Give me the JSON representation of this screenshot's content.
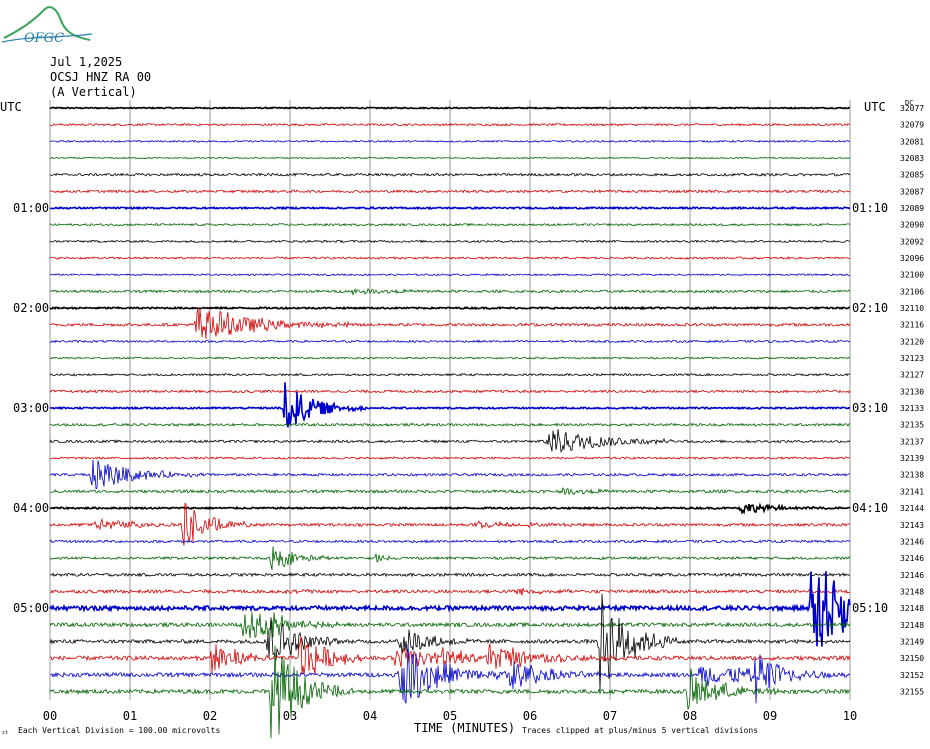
{
  "logo": {
    "text": "OFGC",
    "color": "#2a7fa8",
    "accent": "#3aa35a"
  },
  "header": {
    "date": "Jul 1,2025",
    "station": "OCSJ HNZ RA 00",
    "component": "(A Vertical)"
  },
  "left_axis_title": "UTC",
  "right_axis_title": "UTC",
  "right_scale_header": "DC",
  "footer": {
    "corner_mark": "st",
    "division_note": "Each Vertical Division =  100.00 microvolts",
    "xlabel": "TIME (MINUTES)",
    "clip_note": "Traces clipped at plus/minus 5 vertical divisions"
  },
  "colors": {
    "black": "#000000",
    "red": "#d40000",
    "blue": "#0000cc",
    "green": "#006400",
    "grid": "#808080"
  },
  "chart_data": {
    "type": "line",
    "title": "",
    "xlabel": "TIME (MINUTES)",
    "ylabel": "",
    "xlim": [
      0,
      10
    ],
    "x_ticks": [
      "00",
      "01",
      "02",
      "03",
      "04",
      "05",
      "06",
      "07",
      "08",
      "09",
      "10"
    ],
    "color_cycle": [
      "black",
      "red",
      "blue",
      "green"
    ],
    "left_time_labels": [
      {
        "row": 6,
        "label": "01:00"
      },
      {
        "row": 12,
        "label": "02:00"
      },
      {
        "row": 18,
        "label": "03:00"
      },
      {
        "row": 24,
        "label": "04:00"
      },
      {
        "row": 30,
        "label": "05:00"
      }
    ],
    "right_time_labels": [
      {
        "row": 6,
        "label": "01:10"
      },
      {
        "row": 12,
        "label": "02:10"
      },
      {
        "row": 18,
        "label": "03:10"
      },
      {
        "row": 24,
        "label": "04:10"
      },
      {
        "row": 30,
        "label": "05:10"
      }
    ],
    "dc_offsets": [
      "32077",
      "32079",
      "32081",
      "32083",
      "32085",
      "32087",
      "32089",
      "32090",
      "32092",
      "32096",
      "32100",
      "32106",
      "32110",
      "32116",
      "32120",
      "32123",
      "32127",
      "32130",
      "32133",
      "32135",
      "32137",
      "32139",
      "32138",
      "32141",
      "32144",
      "32143",
      "32146",
      "32146",
      "32146",
      "32148",
      "32148",
      "32148",
      "32149",
      "32150",
      "32152",
      "32155"
    ],
    "bold_rows": [
      0,
      6,
      12,
      18,
      24,
      30
    ],
    "traces": [
      {
        "row": 0,
        "noise": 0.3,
        "events": []
      },
      {
        "row": 1,
        "noise": 0.5,
        "events": []
      },
      {
        "row": 2,
        "noise": 0.4,
        "events": []
      },
      {
        "row": 3,
        "noise": 0.3,
        "events": []
      },
      {
        "row": 4,
        "noise": 0.6,
        "events": []
      },
      {
        "row": 5,
        "noise": 0.6,
        "events": []
      },
      {
        "row": 6,
        "noise": 0.4,
        "events": []
      },
      {
        "row": 7,
        "noise": 0.5,
        "events": []
      },
      {
        "row": 8,
        "noise": 0.5,
        "events": []
      },
      {
        "row": 9,
        "noise": 0.5,
        "events": []
      },
      {
        "row": 10,
        "noise": 0.4,
        "events": []
      },
      {
        "row": 11,
        "noise": 0.6,
        "events": [
          {
            "t": 3.75,
            "amp": 1.2,
            "dur": 0.6
          }
        ]
      },
      {
        "row": 12,
        "noise": 0.4,
        "events": []
      },
      {
        "row": 13,
        "noise": 0.7,
        "events": [
          {
            "t": 1.8,
            "amp": 10,
            "dur": 0.7
          }
        ]
      },
      {
        "row": 14,
        "noise": 0.5,
        "events": []
      },
      {
        "row": 15,
        "noise": 0.4,
        "events": []
      },
      {
        "row": 16,
        "noise": 0.5,
        "events": []
      },
      {
        "row": 17,
        "noise": 0.6,
        "events": []
      },
      {
        "row": 18,
        "noise": 0.4,
        "events": [
          {
            "t": 2.9,
            "amp": 14,
            "dur": 0.35
          }
        ]
      },
      {
        "row": 19,
        "noise": 0.6,
        "events": []
      },
      {
        "row": 20,
        "noise": 0.6,
        "events": [
          {
            "t": 6.2,
            "amp": 8,
            "dur": 0.6
          }
        ]
      },
      {
        "row": 21,
        "noise": 0.5,
        "events": []
      },
      {
        "row": 22,
        "noise": 0.6,
        "events": [
          {
            "t": 0.5,
            "amp": 9,
            "dur": 0.5
          }
        ]
      },
      {
        "row": 23,
        "noise": 0.7,
        "events": [
          {
            "t": 6.4,
            "amp": 1.5,
            "dur": 0.4
          }
        ]
      },
      {
        "row": 24,
        "noise": 0.4,
        "events": [
          {
            "t": 8.6,
            "amp": 3,
            "dur": 0.4
          }
        ]
      },
      {
        "row": 25,
        "noise": 0.7,
        "events": [
          {
            "t": 0.55,
            "amp": 3,
            "dur": 0.6
          },
          {
            "t": 1.65,
            "amp": 14,
            "dur": 0.3
          },
          {
            "t": 5.3,
            "amp": 2,
            "dur": 0.5
          }
        ]
      },
      {
        "row": 26,
        "noise": 0.6,
        "events": []
      },
      {
        "row": 27,
        "noise": 0.6,
        "events": [
          {
            "t": 2.75,
            "amp": 7,
            "dur": 0.3
          },
          {
            "t": 4.05,
            "amp": 3,
            "dur": 0.1
          }
        ]
      },
      {
        "row": 28,
        "noise": 0.7,
        "events": []
      },
      {
        "row": 29,
        "noise": 0.8,
        "events": [
          {
            "t": 2.9,
            "amp": 2,
            "dur": 0.2
          },
          {
            "t": 5.8,
            "amp": 2,
            "dur": 0.3
          }
        ]
      },
      {
        "row": 30,
        "noise": 1.0,
        "events": [
          {
            "t": 9.5,
            "amp": 28,
            "dur": 0.5
          }
        ]
      },
      {
        "row": 31,
        "noise": 0.9,
        "events": [
          {
            "t": 2.4,
            "amp": 10,
            "dur": 0.4
          },
          {
            "t": 2.7,
            "amp": 8,
            "dur": 0.2
          }
        ]
      },
      {
        "row": 32,
        "noise": 0.9,
        "events": [
          {
            "t": 2.7,
            "amp": 18,
            "dur": 0.3
          },
          {
            "t": 4.35,
            "amp": 9,
            "dur": 0.35
          },
          {
            "t": 6.85,
            "amp": 28,
            "dur": 0.35
          }
        ]
      },
      {
        "row": 33,
        "noise": 1.0,
        "events": [
          {
            "t": 2.0,
            "amp": 11,
            "dur": 0.3
          },
          {
            "t": 3.1,
            "amp": 16,
            "dur": 0.3
          },
          {
            "t": 4.3,
            "amp": 6,
            "dur": 0.6
          },
          {
            "t": 4.8,
            "amp": 5,
            "dur": 0.5
          },
          {
            "t": 5.45,
            "amp": 7,
            "dur": 0.6
          }
        ]
      },
      {
        "row": 34,
        "noise": 1.0,
        "events": [
          {
            "t": 4.35,
            "amp": 18,
            "dur": 0.5
          },
          {
            "t": 5.7,
            "amp": 10,
            "dur": 0.4
          },
          {
            "t": 8.1,
            "amp": 6,
            "dur": 0.8
          },
          {
            "t": 8.8,
            "amp": 16,
            "dur": 0.3
          }
        ]
      },
      {
        "row": 35,
        "noise": 1.0,
        "events": [
          {
            "t": 2.75,
            "amp": 28,
            "dur": 0.35
          },
          {
            "t": 7.95,
            "amp": 12,
            "dur": 0.4
          }
        ]
      }
    ]
  }
}
